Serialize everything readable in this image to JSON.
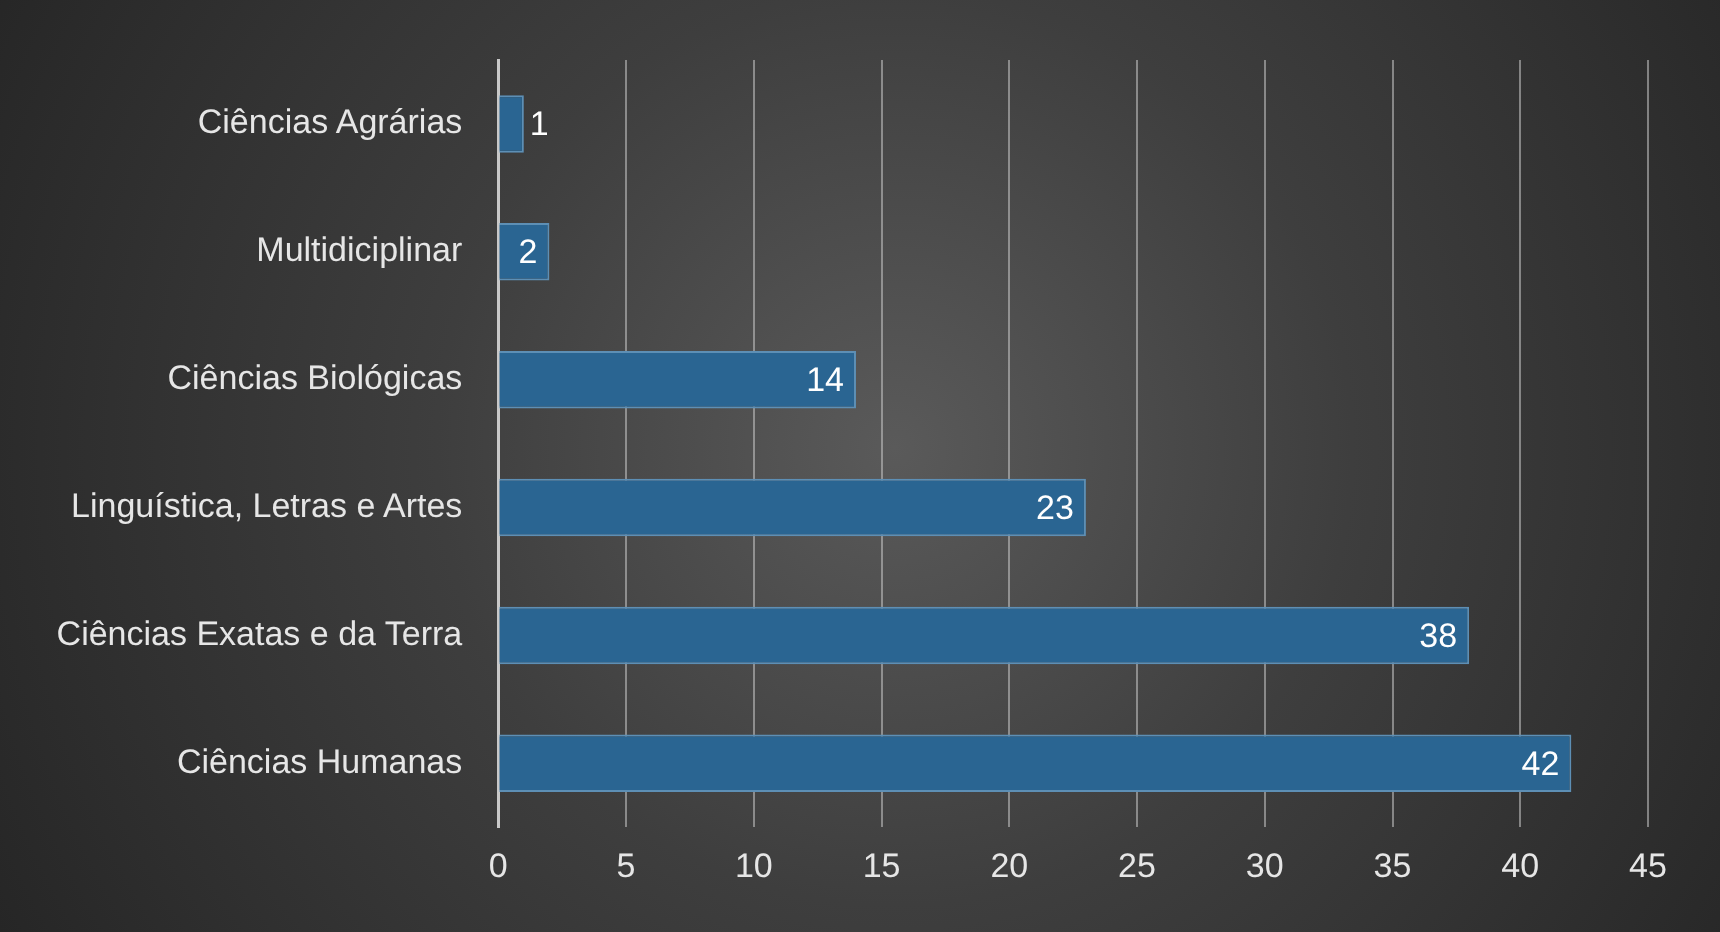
{
  "chart_data": {
    "type": "bar",
    "orientation": "horizontal",
    "categories": [
      "Ciências Agrárias",
      "Multidiciplinar",
      "Ciências Biológicas",
      "Linguística, Letras e Artes",
      "Ciências Exatas e da Terra",
      "Ciências Humanas"
    ],
    "values": [
      1,
      2,
      14,
      23,
      38,
      42
    ],
    "color": "#2a6592",
    "xlim": [
      0,
      45
    ],
    "xticks": [
      0,
      5,
      10,
      15,
      20,
      25,
      30,
      35,
      40,
      45
    ],
    "grid": "x",
    "legend": false,
    "data_labels": true
  }
}
